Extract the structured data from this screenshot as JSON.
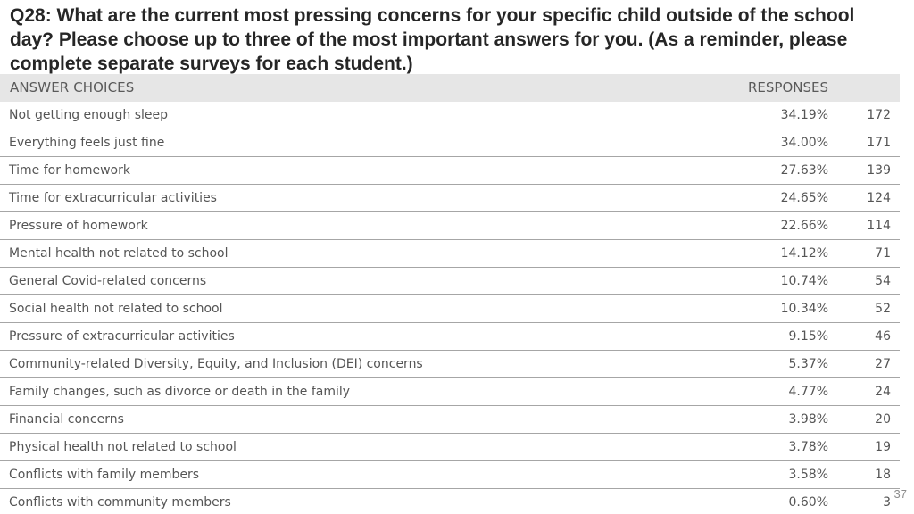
{
  "title": "Q28: What are the current most pressing concerns for your specific child outside of the school day? Please choose up to three of the most important answers for you. (As a reminder, please complete separate surveys for each student.)",
  "header": {
    "answer_choices": "ANSWER CHOICES",
    "responses": "RESPONSES"
  },
  "rows": [
    {
      "label": "Not getting enough sleep",
      "percent": "34.19%",
      "count": "172"
    },
    {
      "label": "Everything feels just fine",
      "percent": "34.00%",
      "count": "171"
    },
    {
      "label": "Time for homework",
      "percent": "27.63%",
      "count": "139"
    },
    {
      "label": "Time for extracurricular activities",
      "percent": "24.65%",
      "count": "124"
    },
    {
      "label": "Pressure of homework",
      "percent": "22.66%",
      "count": "114"
    },
    {
      "label": "Mental health not related to school",
      "percent": "14.12%",
      "count": "71"
    },
    {
      "label": "General Covid-related concerns",
      "percent": "10.74%",
      "count": "54"
    },
    {
      "label": "Social health not related to school",
      "percent": "10.34%",
      "count": "52"
    },
    {
      "label": "Pressure of extracurricular activities",
      "percent": "9.15%",
      "count": "46"
    },
    {
      "label": "Community-related Diversity, Equity, and Inclusion (DEI) concerns",
      "percent": "5.37%",
      "count": "27"
    },
    {
      "label": "Family changes, such as divorce or death in the family",
      "percent": "4.77%",
      "count": "24"
    },
    {
      "label": "Financial concerns",
      "percent": "3.98%",
      "count": "20"
    },
    {
      "label": "Physical health not related to school",
      "percent": "3.78%",
      "count": "19"
    },
    {
      "label": "Conflicts with family members",
      "percent": "3.58%",
      "count": "18"
    },
    {
      "label": "Conflicts with community members",
      "percent": "0.60%",
      "count": "3"
    }
  ],
  "page_number": "37"
}
